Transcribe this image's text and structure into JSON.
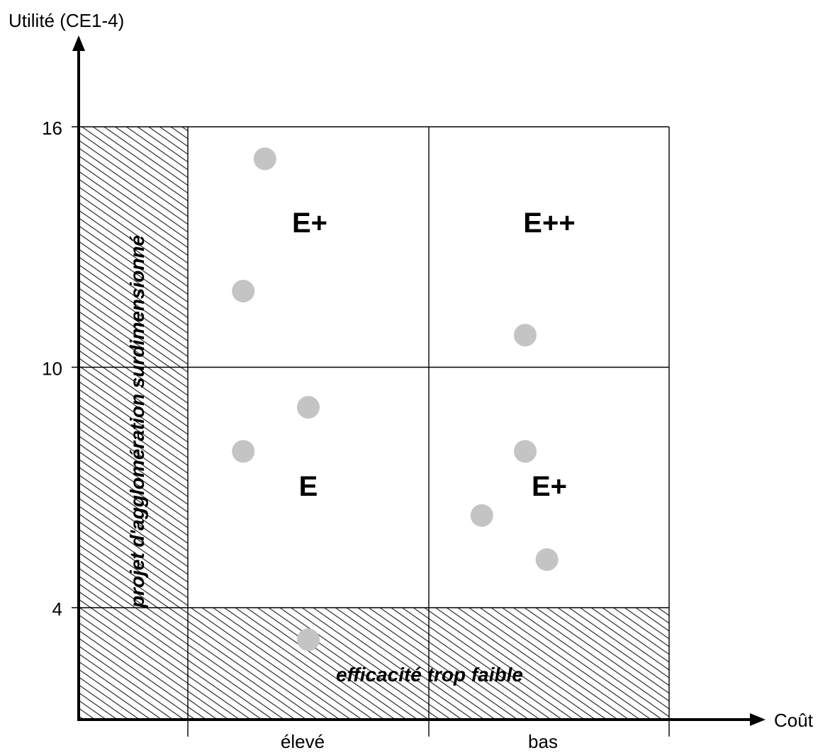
{
  "chart_data": {
    "type": "scatter",
    "title": "",
    "ylabel": "Utilité (CE1-4)",
    "xlabel": "Coût",
    "ylim": [
      0,
      18
    ],
    "y_ticks": [
      4,
      10,
      16
    ],
    "x_categories": [
      "élevé",
      "bas"
    ],
    "grid": true,
    "zones": [
      {
        "label": "E+",
        "quadrant": "élevé-high"
      },
      {
        "label": "E++",
        "quadrant": "bas-high"
      },
      {
        "label": "E",
        "quadrant": "élevé-low"
      },
      {
        "label": "E+",
        "quadrant": "bas-low"
      }
    ],
    "hatched_regions": [
      {
        "label": "projet d'agglomération surdimensionné",
        "position": "left"
      },
      {
        "label": "efficacité trop faible",
        "position": "bottom"
      }
    ],
    "points": [
      {
        "x": 0.32,
        "y": 15.2
      },
      {
        "x": 0.23,
        "y": 11.9
      },
      {
        "x": 0.5,
        "y": 9.0
      },
      {
        "x": 0.23,
        "y": 7.9
      },
      {
        "x": 0.5,
        "y": 3.2
      },
      {
        "x": 1.4,
        "y": 10.8
      },
      {
        "x": 1.4,
        "y": 7.9
      },
      {
        "x": 1.22,
        "y": 6.3
      },
      {
        "x": 1.49,
        "y": 5.2
      }
    ],
    "colors": {
      "point": "#c4c4c4",
      "hatch": "#222222",
      "lines": "#000000"
    }
  }
}
